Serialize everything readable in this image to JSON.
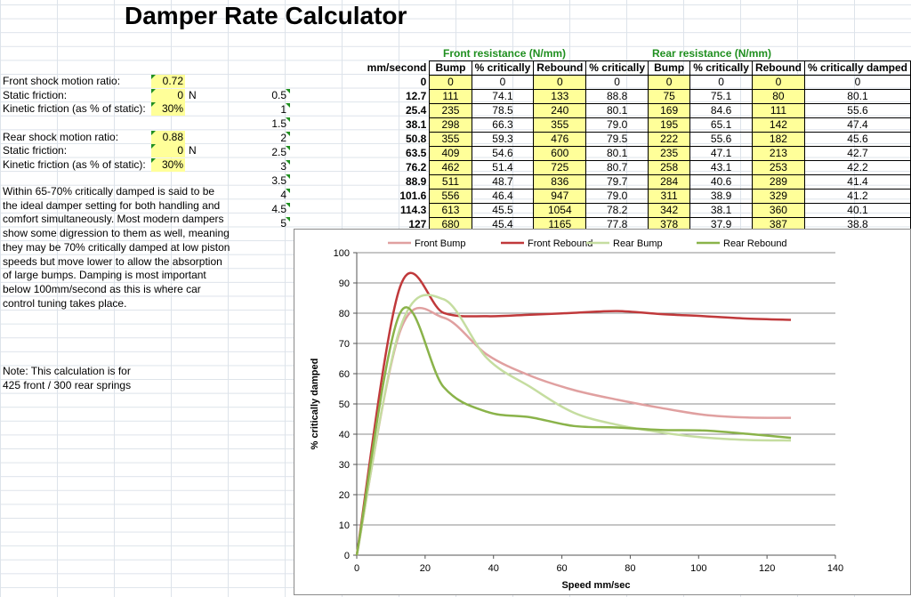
{
  "title": "Damper Rate Calculator",
  "front_params": [
    {
      "label": "Front shock motion ratio:",
      "value": "0.72",
      "unit": ""
    },
    {
      "label": "Static friction:",
      "value": "0",
      "unit": "N"
    },
    {
      "label": "Kinetic friction (as % of static):",
      "value": "30%",
      "unit": ""
    }
  ],
  "rear_params": [
    {
      "label": "Rear shock motion ratio:",
      "value": "0.88",
      "unit": ""
    },
    {
      "label": "Static friction:",
      "value": "0",
      "unit": "N"
    },
    {
      "label": "Kinetic friction (as % of static):",
      "value": "30%",
      "unit": ""
    }
  ],
  "note_paragraph": "Within 65-70% critically damped is said to be the ideal damper setting for both handling and comfort simultaneously.  Most modern dampers show some digression to them as well, meaning they may be 70% critically damped at low piston speeds but move lower to allow the absorption of large bumps.  Damping is most important below 100mm/second as this is where car control tuning takes place.",
  "note_springs": "Note: This calculation is for 425 front / 300 rear springs",
  "speeds": [
    "0.5",
    "1",
    "1.5",
    "2",
    "2.5",
    "3",
    "3.5",
    "4",
    "4.5",
    "5"
  ],
  "table": {
    "front_header": "Front resistance (N/mm)",
    "rear_header": "Rear resistance (N/mm)",
    "columns": [
      "mm/second",
      "Bump",
      "% critically",
      "Rebound",
      "% critically",
      "Bump",
      "% critically",
      "Rebound",
      "% critically damped"
    ],
    "rows": [
      [
        "0",
        "0",
        "0",
        "0",
        "0",
        "0",
        "0",
        "0",
        "0"
      ],
      [
        "12.7",
        "111",
        "74.1",
        "133",
        "88.8",
        "75",
        "75.1",
        "80",
        "80.1"
      ],
      [
        "25.4",
        "235",
        "78.5",
        "240",
        "80.1",
        "169",
        "84.6",
        "111",
        "55.6"
      ],
      [
        "38.1",
        "298",
        "66.3",
        "355",
        "79.0",
        "195",
        "65.1",
        "142",
        "47.4"
      ],
      [
        "50.8",
        "355",
        "59.3",
        "476",
        "79.5",
        "222",
        "55.6",
        "182",
        "45.6"
      ],
      [
        "63.5",
        "409",
        "54.6",
        "600",
        "80.1",
        "235",
        "47.1",
        "213",
        "42.7"
      ],
      [
        "76.2",
        "462",
        "51.4",
        "725",
        "80.7",
        "258",
        "43.1",
        "253",
        "42.2"
      ],
      [
        "88.9",
        "511",
        "48.7",
        "836",
        "79.7",
        "284",
        "40.6",
        "289",
        "41.4"
      ],
      [
        "101.6",
        "556",
        "46.4",
        "947",
        "79.0",
        "311",
        "38.9",
        "329",
        "41.2"
      ],
      [
        "114.3",
        "613",
        "45.5",
        "1054",
        "78.2",
        "342",
        "38.1",
        "360",
        "40.1"
      ],
      [
        "127",
        "680",
        "45.4",
        "1165",
        "77.8",
        "378",
        "37.9",
        "387",
        "38.8"
      ]
    ]
  },
  "chart_data": {
    "type": "line",
    "title": "",
    "xlabel": "Speed mm/sec",
    "ylabel": "% critically damped",
    "xlim": [
      0,
      140
    ],
    "ylim": [
      0,
      100
    ],
    "xticks": [
      0,
      20,
      40,
      60,
      80,
      100,
      120,
      140
    ],
    "yticks": [
      0,
      10,
      20,
      30,
      40,
      50,
      60,
      70,
      80,
      90,
      100
    ],
    "grid": "horizontal",
    "legend": "top",
    "x": [
      0,
      12.7,
      25.4,
      38.1,
      50.8,
      63.5,
      76.2,
      88.9,
      101.6,
      114.3,
      127
    ],
    "series": [
      {
        "name": "Front Bump",
        "color": "#e0a0a0",
        "values": [
          0,
          74.1,
          78.5,
          66.3,
          59.3,
          54.6,
          51.4,
          48.7,
          46.4,
          45.5,
          45.4
        ]
      },
      {
        "name": "Front Rebound",
        "color": "#c0393b",
        "values": [
          0,
          88.8,
          80.1,
          79.0,
          79.5,
          80.1,
          80.7,
          79.7,
          79.0,
          78.2,
          77.8
        ]
      },
      {
        "name": "Rear Bump",
        "color": "#c5dda0",
        "values": [
          0,
          75.1,
          84.6,
          65.1,
          55.6,
          47.1,
          43.1,
          40.6,
          38.9,
          38.1,
          37.9
        ]
      },
      {
        "name": "Rear Rebound",
        "color": "#8ab34a",
        "values": [
          0,
          80.1,
          55.6,
          47.4,
          45.6,
          42.7,
          42.2,
          41.4,
          41.2,
          40.1,
          38.8
        ]
      }
    ]
  }
}
